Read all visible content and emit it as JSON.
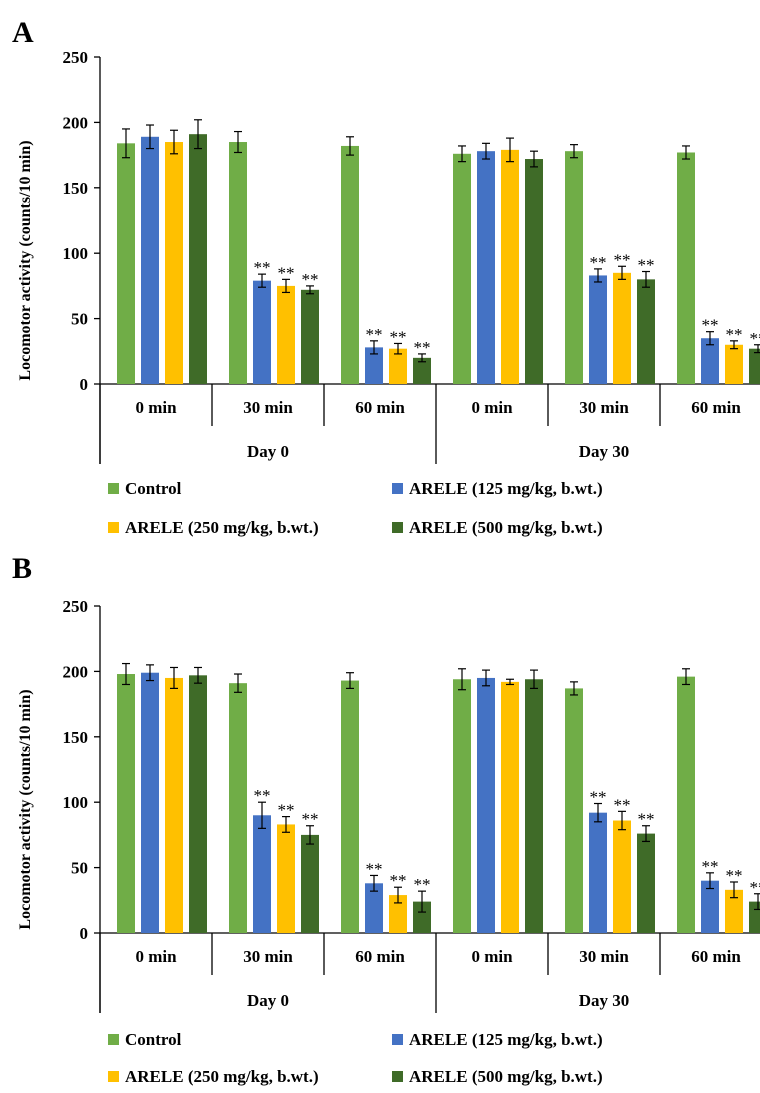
{
  "colors": {
    "series": [
      "#70ad47",
      "#4472c4",
      "#ffc000",
      "#3f6b28"
    ],
    "axis": "#000000"
  },
  "chart_data": [
    {
      "panel_label": "A",
      "type": "bar",
      "ylabel": "Locomotor activity (counts/10 min)",
      "ylim": [
        0,
        250
      ],
      "yticks": [
        "0",
        "50",
        "100",
        "150",
        "200",
        "250"
      ],
      "grid": false,
      "legend_position": "bottom",
      "groups": [
        {
          "label": "Day 0",
          "categories": [
            "0 min",
            "30 min",
            "60 min"
          ]
        },
        {
          "label": "Day 30",
          "categories": [
            "0 min",
            "30 min",
            "60 min"
          ]
        }
      ],
      "categories": [
        "0 min",
        "30 min",
        "60 min",
        "0 min",
        "30 min",
        "60 min"
      ],
      "series": [
        {
          "name": "Control",
          "values": [
            184,
            185,
            182,
            176,
            178,
            177
          ],
          "errors": [
            11,
            8,
            7,
            6,
            5,
            5
          ],
          "significance": [
            "",
            "",
            "",
            "",
            "",
            ""
          ]
        },
        {
          "name": "ARELE (125 mg/kg, b.wt.)",
          "values": [
            189,
            79,
            28,
            178,
            83,
            35
          ],
          "errors": [
            9,
            5,
            5,
            6,
            5,
            5
          ],
          "significance": [
            "",
            "**",
            "**",
            "",
            "**",
            "**"
          ]
        },
        {
          "name": "ARELE (250 mg/kg, b.wt.)",
          "values": [
            185,
            75,
            27,
            179,
            85,
            30
          ],
          "errors": [
            9,
            5,
            4,
            9,
            5,
            3
          ],
          "significance": [
            "",
            "**",
            "**",
            "",
            "**",
            "**"
          ]
        },
        {
          "name": "ARELE (500 mg/kg, b.wt.)",
          "values": [
            191,
            72,
            20,
            172,
            80,
            27
          ],
          "errors": [
            11,
            3,
            3,
            6,
            6,
            3
          ],
          "significance": [
            "",
            "**",
            "**",
            "",
            "**",
            "**"
          ]
        }
      ]
    },
    {
      "panel_label": "B",
      "type": "bar",
      "ylabel": "Locomotor activity (counts/10 min)",
      "ylim": [
        0,
        250
      ],
      "yticks": [
        "0",
        "50",
        "100",
        "150",
        "200",
        "250"
      ],
      "grid": false,
      "legend_position": "bottom",
      "groups": [
        {
          "label": "Day 0",
          "categories": [
            "0 min",
            "30 min",
            "60 min"
          ]
        },
        {
          "label": "Day 30",
          "categories": [
            "0 min",
            "30 min",
            "60 min"
          ]
        }
      ],
      "categories": [
        "0 min",
        "30 min",
        "60 min",
        "0 min",
        "30 min",
        "60 min"
      ],
      "series": [
        {
          "name": "Control",
          "values": [
            198,
            191,
            193,
            194,
            187,
            196
          ],
          "errors": [
            8,
            7,
            6,
            8,
            5,
            6
          ],
          "significance": [
            "",
            "",
            "",
            "",
            "",
            ""
          ]
        },
        {
          "name": "ARELE (125 mg/kg, b.wt.)",
          "values": [
            199,
            90,
            38,
            195,
            92,
            40
          ],
          "errors": [
            6,
            10,
            6,
            6,
            7,
            6
          ],
          "significance": [
            "",
            "**",
            "**",
            "",
            "**",
            "**"
          ]
        },
        {
          "name": "ARELE (250 mg/kg, b.wt.)",
          "values": [
            195,
            83,
            29,
            192,
            86,
            33
          ],
          "errors": [
            8,
            6,
            6,
            2,
            7,
            6
          ],
          "significance": [
            "",
            "**",
            "**",
            "",
            "**",
            "**"
          ]
        },
        {
          "name": "ARELE (500 mg/kg, b.wt.)",
          "values": [
            197,
            75,
            24,
            194,
            76,
            24
          ],
          "errors": [
            6,
            7,
            8,
            7,
            6,
            6
          ],
          "significance": [
            "",
            "**",
            "**",
            "",
            "**",
            "**"
          ]
        }
      ]
    }
  ]
}
